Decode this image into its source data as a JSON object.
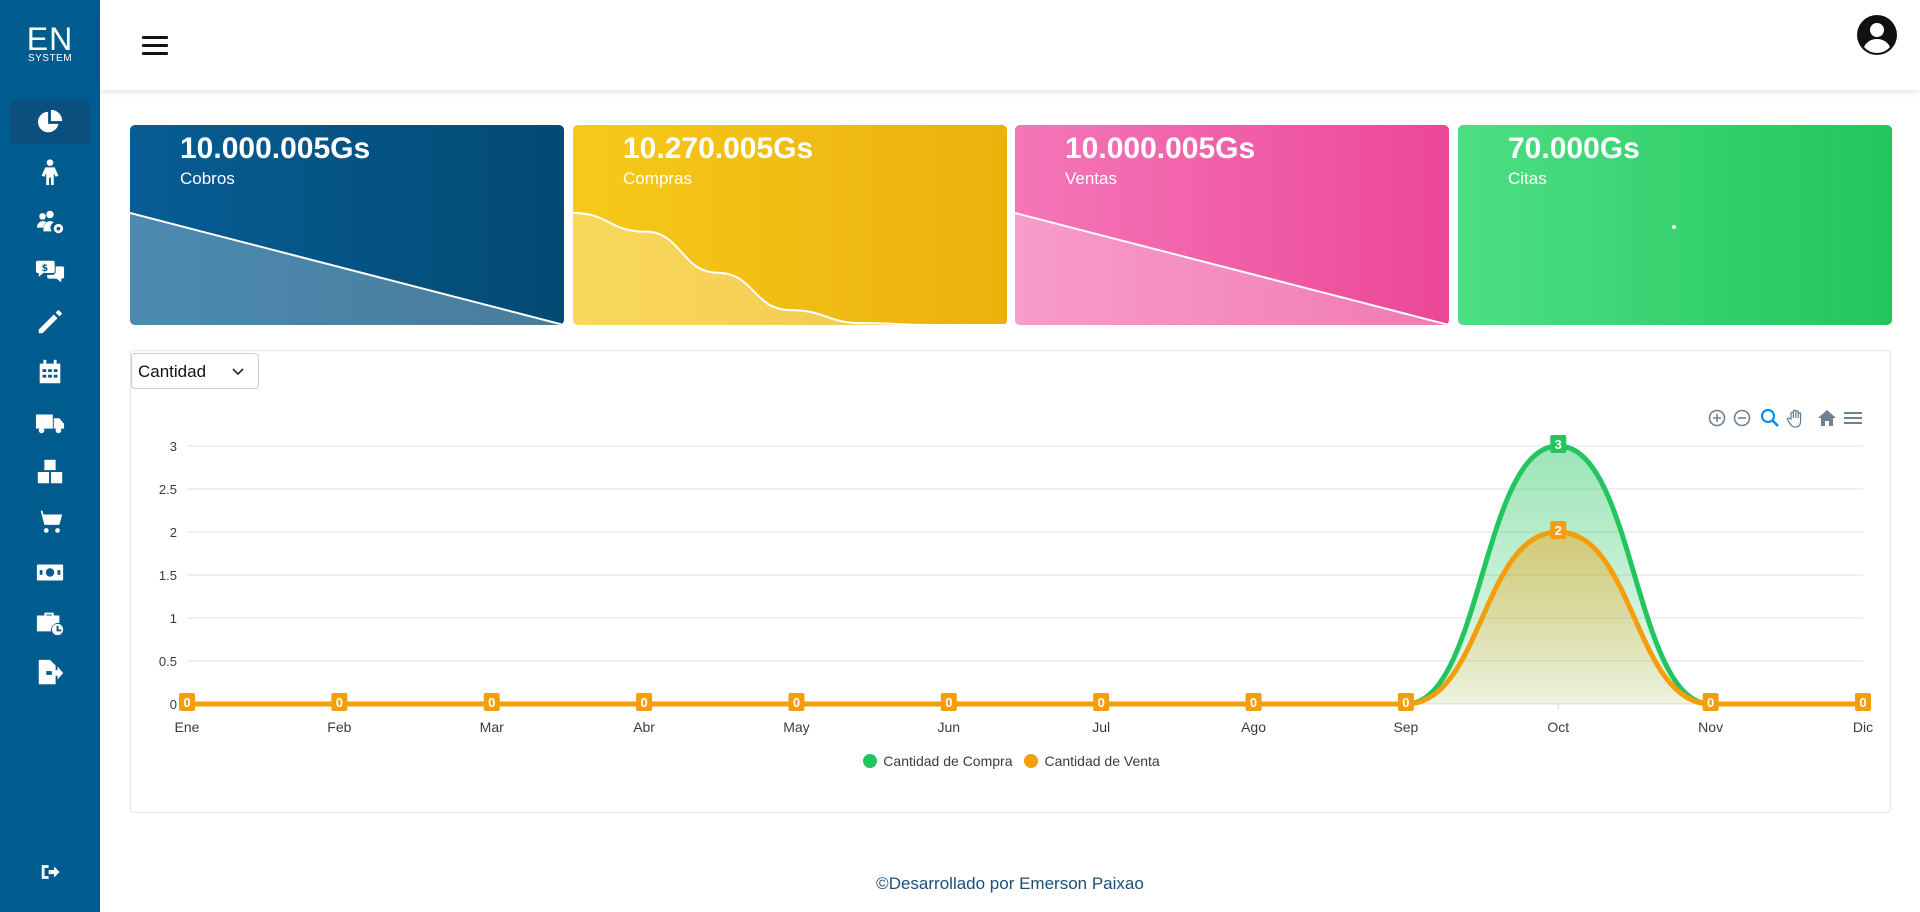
{
  "logo": {
    "big": "EN",
    "small": "SYSTEM"
  },
  "nav": [
    {
      "icon": "pie-chart-icon",
      "active": true
    },
    {
      "icon": "person-icon"
    },
    {
      "icon": "users-gear-icon"
    },
    {
      "icon": "money-chat-icon"
    },
    {
      "icon": "pencil-icon"
    },
    {
      "icon": "calendar-icon"
    },
    {
      "icon": "truck-icon"
    },
    {
      "icon": "boxes-icon"
    },
    {
      "icon": "cart-icon"
    },
    {
      "icon": "cash-icon"
    },
    {
      "icon": "briefcase-clock-icon"
    },
    {
      "icon": "file-export-icon"
    }
  ],
  "logout_icon": "sign-out-icon",
  "cards": [
    {
      "value": "10.000.005Gs",
      "label": "Cobros",
      "spark": [
        3,
        2.5,
        2,
        1.5,
        1,
        0.5,
        0
      ]
    },
    {
      "value": "10.270.005Gs",
      "label": "Compras",
      "spark": [
        3,
        2.5,
        1.4,
        0.4,
        0.05,
        0,
        0
      ]
    },
    {
      "value": "10.000.005Gs",
      "label": "Ventas",
      "spark": [
        3,
        2.5,
        2,
        1.5,
        1,
        0.5,
        0
      ]
    },
    {
      "value": "70.000Gs",
      "label": "Citas",
      "spark": []
    }
  ],
  "filter": {
    "selected": "Cantidad"
  },
  "toolbar": [
    "zoom-in-icon",
    "zoom-out-icon",
    "magnifier-icon",
    "hand-pan-icon",
    "home-icon",
    "menu-icon"
  ],
  "chart_data": {
    "type": "area",
    "categories": [
      "Ene",
      "Feb",
      "Mar",
      "Abr",
      "May",
      "Jun",
      "Jul",
      "Ago",
      "Sep",
      "Oct",
      "Nov",
      "Dic"
    ],
    "series": [
      {
        "name": "Cantidad de Compra",
        "color": "#22c55e",
        "values": [
          0,
          0,
          0,
          0,
          0,
          0,
          0,
          0,
          0,
          3,
          0,
          0
        ]
      },
      {
        "name": "Cantidad de Venta",
        "color": "#f59e0b",
        "values": [
          0,
          0,
          0,
          0,
          0,
          0,
          0,
          0,
          0,
          2,
          0,
          0
        ]
      }
    ],
    "yticks": [
      "0",
      "0.5",
      "1",
      "1.5",
      "2",
      "2.5",
      "3"
    ],
    "ylim": [
      0,
      3
    ],
    "grid": true,
    "legend": "bottom-center"
  },
  "footer": {
    "text": "©Desarrollado por Emerson Paixao"
  }
}
